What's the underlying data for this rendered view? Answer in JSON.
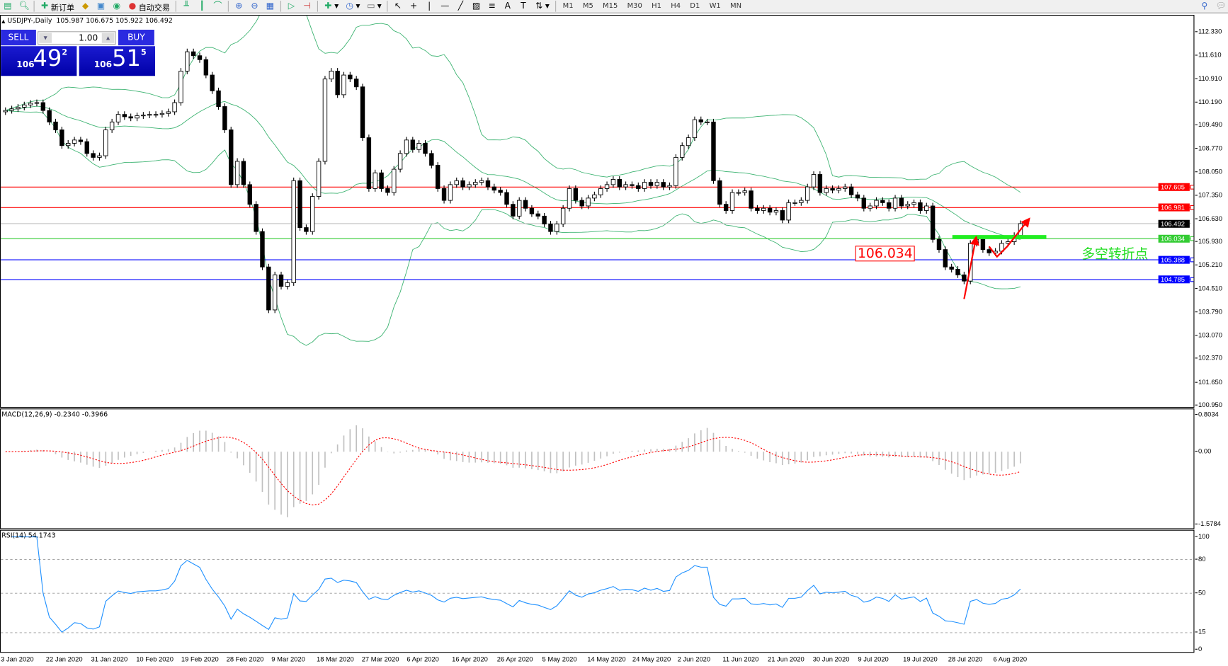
{
  "toolbar": {
    "new_order_label": "新订单",
    "auto_trade_label": "自动交易",
    "timeframes": [
      "M1",
      "M5",
      "M15",
      "M30",
      "H1",
      "H4",
      "D1",
      "W1",
      "MN"
    ]
  },
  "chart": {
    "title": "USDJPY-,Daily",
    "ohlc_text": "105.987 106.675 105.922 106.492",
    "price_ticks": [
      "112.330",
      "111.610",
      "110.910",
      "110.190",
      "109.490",
      "108.770",
      "108.050",
      "107.350",
      "106.630",
      "105.930",
      "105.210",
      "104.510",
      "103.790",
      "103.070",
      "102.370",
      "101.650",
      "100.950"
    ],
    "closes": [
      109.94,
      109.99,
      110.04,
      110.11,
      110.16,
      110.18,
      109.94,
      109.59,
      109.35,
      108.87,
      108.94,
      109.04,
      108.99,
      108.63,
      108.51,
      108.56,
      109.35,
      109.59,
      109.82,
      109.75,
      109.71,
      109.78,
      109.8,
      109.82,
      109.82,
      109.85,
      109.9,
      110.18,
      111.14,
      111.73,
      111.61,
      111.49,
      111.02,
      110.54,
      110.06,
      109.35,
      107.68,
      108.39,
      107.68,
      107.08,
      106.25,
      105.17,
      103.86,
      104.93,
      104.58,
      104.69,
      107.8,
      106.37,
      106.25,
      107.32,
      108.39,
      110.9,
      111.14,
      110.42,
      111.02,
      110.9,
      110.66,
      109.11,
      107.56,
      108.04,
      107.56,
      107.44,
      108.15,
      108.63,
      109.04,
      108.75,
      108.94,
      108.63,
      108.27,
      107.56,
      107.2,
      107.68,
      107.8,
      107.61,
      107.68,
      107.75,
      107.8,
      107.61,
      107.51,
      107.44,
      107.08,
      106.72,
      107.2,
      106.96,
      106.79,
      106.72,
      106.48,
      106.25,
      106.48,
      106.96,
      107.56,
      107.2,
      107.03,
      107.27,
      107.37,
      107.56,
      107.68,
      107.84,
      107.61,
      107.68,
      107.65,
      107.56,
      107.75,
      107.65,
      107.75,
      107.61,
      107.65,
      108.51,
      108.87,
      109.11,
      109.66,
      109.59,
      109.59,
      107.8,
      107.08,
      106.89,
      107.44,
      107.44,
      107.49,
      106.96,
      106.89,
      106.96,
      106.84,
      106.89,
      106.6,
      107.13,
      107.13,
      107.2,
      107.61,
      107.99,
      107.44,
      107.56,
      107.51,
      107.56,
      107.61,
      107.37,
      107.27,
      106.96,
      107.03,
      107.2,
      107.13,
      106.96,
      107.27,
      107.03,
      107.08,
      107.13,
      106.89,
      107.03,
      106.01,
      105.7,
      105.17,
      105.1,
      104.93,
      104.74,
      105.89,
      106.01,
      105.7,
      105.6,
      105.65,
      105.89,
      105.94,
      106.13,
      106.492
    ],
    "first_open": 109.9,
    "price_range": [
      100.95,
      112.33
    ],
    "levels": [
      {
        "value": "107.605",
        "color": "#ff0000"
      },
      {
        "value": "106.981",
        "color": "#ff0000"
      },
      {
        "value": "106.492",
        "color": "#000000",
        "line": "#c0c0c0"
      },
      {
        "value": "106.034",
        "color": "#33cc33"
      },
      {
        "value": "105.388",
        "color": "#0000ff"
      },
      {
        "value": "104.785",
        "color": "#0000ff"
      }
    ],
    "annotation_price": "106.034",
    "annotation_text": "多空转折点",
    "bands_color": "#3cb371"
  },
  "one_click": {
    "sell": "SELL",
    "buy": "BUY",
    "lot": "1.00",
    "bid_big": "106",
    "bid_main": "49",
    "bid_pip": "2",
    "ask_big": "106",
    "ask_main": "51",
    "ask_pip": "5"
  },
  "macd": {
    "title": "MACD(12,26,9) -0.2340 -0.3966",
    "ticks": [
      "0.8034",
      "0.00",
      "-1.5784"
    ],
    "range": [
      -1.5784,
      0.8034
    ],
    "signal_color": "#ff0000",
    "hist_color": "#c0c0c0"
  },
  "rsi": {
    "title": "RSI(14) 54.1743",
    "ticks": [
      "100",
      "80",
      "50",
      "15",
      "0"
    ],
    "levels": [
      80,
      50,
      15
    ],
    "color": "#1e90ff"
  },
  "dates": [
    "3 Jan 2020",
    "22 Jan 2020",
    "31 Jan 2020",
    "10 Feb 2020",
    "19 Feb 2020",
    "28 Feb 2020",
    "9 Mar 2020",
    "18 Mar 2020",
    "27 Mar 2020",
    "6 Apr 2020",
    "16 Apr 2020",
    "26 Apr 2020",
    "5 May 2020",
    "14 May 2020",
    "24 May 2020",
    "2 Jun 2020",
    "11 Jun 2020",
    "21 Jun 2020",
    "30 Jun 2020",
    "9 Jul 2020",
    "19 Jul 2020",
    "28 Jul 2020",
    "6 Aug 2020"
  ]
}
